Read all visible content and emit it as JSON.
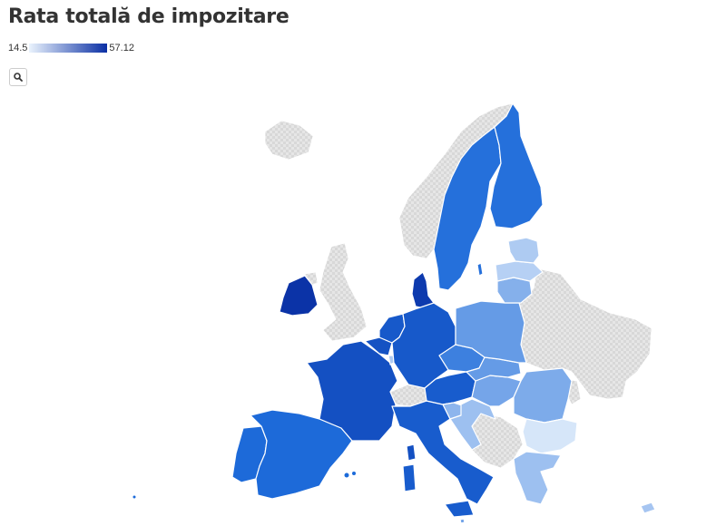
{
  "title": "Rata totală de impozitare",
  "legend": {
    "min_label": "14.5",
    "max_label": "57.12",
    "min": 14.5,
    "max": 57.12,
    "color_low": "#eaf3fd",
    "color_high": "#0a2fa4"
  },
  "controls": {
    "zoom_icon": "magnifier-icon"
  },
  "colors": {
    "no_data": "#e3e3e3"
  },
  "map_data": {
    "type": "choropleth",
    "region": "Europe",
    "regions": [
      {
        "code": "IE",
        "value": 56.0
      },
      {
        "code": "DK",
        "value": 54.0
      },
      {
        "code": "FR",
        "value": 47.5
      },
      {
        "code": "BE",
        "value": 47.0
      },
      {
        "code": "NL",
        "value": 45.0
      },
      {
        "code": "DE",
        "value": 45.0
      },
      {
        "code": "AT",
        "value": 44.0
      },
      {
        "code": "IT",
        "value": 44.0
      },
      {
        "code": "ES",
        "value": 40.0
      },
      {
        "code": "PT",
        "value": 40.0
      },
      {
        "code": "SE",
        "value": 39.0
      },
      {
        "code": "FI",
        "value": 39.0
      },
      {
        "code": "CZ",
        "value": 36.0
      },
      {
        "code": "PL",
        "value": 31.0
      },
      {
        "code": "SK",
        "value": 31.0
      },
      {
        "code": "HU",
        "value": 29.0
      },
      {
        "code": "RO",
        "value": 28.0
      },
      {
        "code": "LT",
        "value": 27.0
      },
      {
        "code": "SI",
        "value": 26.0
      },
      {
        "code": "HR",
        "value": 24.0
      },
      {
        "code": "GR",
        "value": 24.0
      },
      {
        "code": "CY",
        "value": 23.0
      },
      {
        "code": "EE",
        "value": 22.0
      },
      {
        "code": "LV",
        "value": 21.0
      },
      {
        "code": "LU",
        "value": 22.0
      },
      {
        "code": "BG",
        "value": 17.0
      },
      {
        "code": "MT",
        "value": 30.0
      }
    ]
  }
}
